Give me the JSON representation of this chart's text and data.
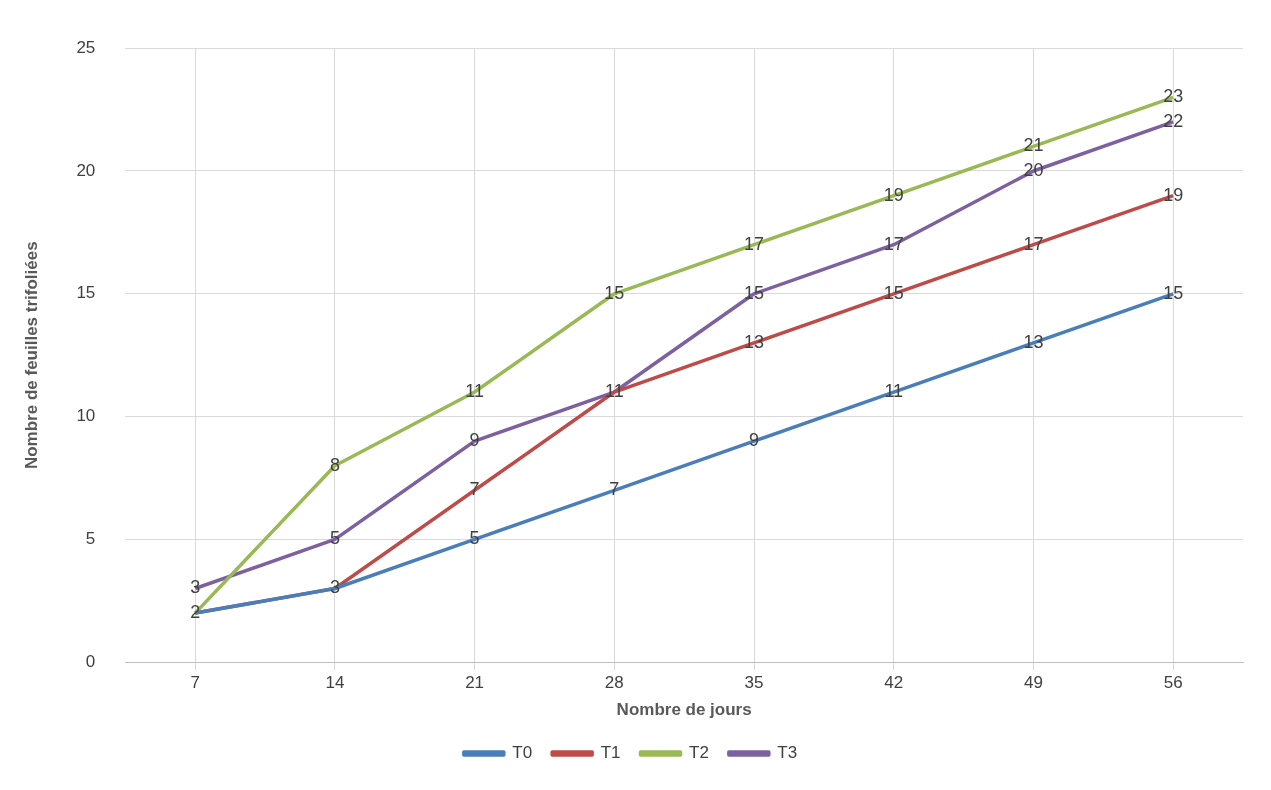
{
  "chart_data": {
    "type": "line",
    "xlabel": "Nombre de jours",
    "ylabel": "Nombre de feuilles trifoliées",
    "categories": [
      "7",
      "14",
      "21",
      "28",
      "35",
      "42",
      "49",
      "56"
    ],
    "ylim": [
      0,
      25
    ],
    "yticks": [
      0,
      5,
      10,
      15,
      20,
      25
    ],
    "grid": true,
    "legend": "bottom",
    "marker": "none",
    "line_style": "solid",
    "series": [
      {
        "name": "T0",
        "color": "#4a7ebb",
        "values": [
          2,
          3,
          5,
          7,
          9,
          11,
          13,
          15
        ],
        "value_labels": [
          "2",
          "3",
          "5",
          "7",
          "9",
          "11",
          "13",
          "15"
        ]
      },
      {
        "name": "T1",
        "color": "#be4b48",
        "values": [
          2,
          3,
          7,
          11,
          13,
          15,
          17,
          19
        ],
        "value_labels": [
          null,
          null,
          "7",
          "11",
          "13",
          "15",
          "17",
          "19"
        ]
      },
      {
        "name": "T2",
        "color": "#98b954",
        "values": [
          2,
          8,
          11,
          15,
          17,
          19,
          21,
          23
        ],
        "value_labels": [
          null,
          "8",
          "11",
          "15",
          "17",
          "19",
          "21",
          "23"
        ]
      },
      {
        "name": "T3",
        "color": "#7d60a0",
        "values": [
          3,
          5,
          9,
          11,
          15,
          17,
          20,
          22
        ],
        "value_labels": [
          "3",
          "5",
          "9",
          null,
          "15",
          "17",
          "20",
          "22"
        ]
      }
    ]
  }
}
